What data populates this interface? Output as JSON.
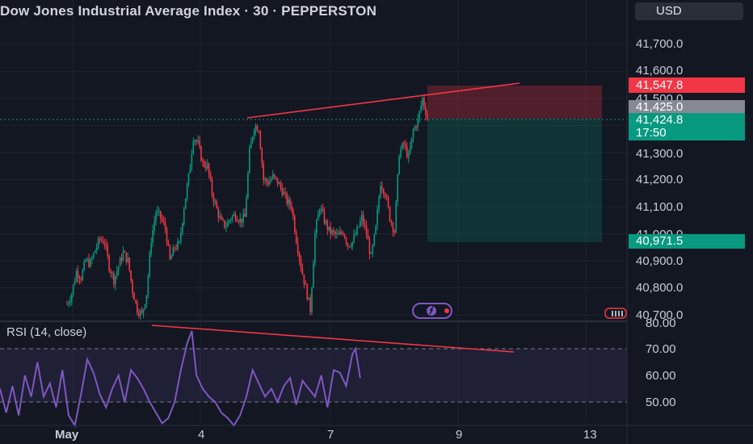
{
  "header": {
    "title": "Dow Jones Industrial Average Index · 30 · PEPPERSTON",
    "currency": "USD"
  },
  "price_axis": {
    "labels": [
      "41,700.0",
      "41,600.0",
      "41,500.0",
      "41,300.0",
      "41,200.0",
      "41,100.0",
      "41,000.0",
      "40,900.0",
      "40,800.0",
      "40,700.0"
    ]
  },
  "tags": {
    "stop": {
      "value": "41,547.8",
      "color": "#f23645"
    },
    "last_close": {
      "value": "41,425.0",
      "color": "#868993"
    },
    "current": {
      "value": "41,424.8",
      "countdown": "17:50",
      "color": "#089981"
    },
    "target": {
      "value": "40,971.5",
      "color": "#089981"
    }
  },
  "rsi": {
    "title": "RSI (14, close)",
    "labels": [
      "80.00",
      "70.00",
      "60.00",
      "50.00"
    ],
    "line_color": "#7e57c2"
  },
  "time_axis": {
    "labels": [
      "May",
      "4",
      "7",
      "9",
      "13"
    ]
  },
  "icons": {
    "logo": "tradingview-logo-icon",
    "calendar": "calendar-icon"
  },
  "chart_data": {
    "type": "candlestick",
    "symbol": "Dow Jones Industrial Average Index",
    "interval": "30",
    "ylim": [
      40700,
      41760
    ],
    "position": {
      "entry": 41425.0,
      "stop": 41547.8,
      "target": 40971.5
    },
    "rsi_levels": [
      70,
      50
    ],
    "close_path": [
      [
        0,
        40740
      ],
      [
        3,
        40780
      ],
      [
        6,
        40860
      ],
      [
        9,
        40840
      ],
      [
        12,
        40900
      ],
      [
        15,
        40890
      ],
      [
        18,
        40940
      ],
      [
        21,
        40980
      ],
      [
        24,
        40970
      ],
      [
        27,
        40880
      ],
      [
        30,
        40830
      ],
      [
        33,
        40880
      ],
      [
        36,
        40930
      ],
      [
        39,
        40900
      ],
      [
        42,
        40790
      ],
      [
        45,
        40720
      ],
      [
        48,
        40700
      ],
      [
        51,
        40780
      ],
      [
        54,
        40980
      ],
      [
        57,
        41080
      ],
      [
        60,
        41060
      ],
      [
        63,
        41020
      ],
      [
        66,
        40900
      ],
      [
        69,
        40950
      ],
      [
        72,
        40960
      ],
      [
        75,
        41100
      ],
      [
        78,
        41210
      ],
      [
        81,
        41360
      ],
      [
        84,
        41330
      ],
      [
        87,
        41260
      ],
      [
        90,
        41250
      ],
      [
        93,
        41150
      ],
      [
        96,
        41090
      ],
      [
        99,
        41040
      ],
      [
        102,
        41030
      ],
      [
        105,
        41060
      ],
      [
        108,
        41070
      ],
      [
        111,
        41050
      ],
      [
        114,
        41060
      ],
      [
        117,
        41300
      ],
      [
        120,
        41400
      ],
      [
        123,
        41390
      ],
      [
        126,
        41200
      ],
      [
        129,
        41190
      ],
      [
        132,
        41210
      ],
      [
        135,
        41190
      ],
      [
        138,
        41160
      ],
      [
        141,
        41120
      ],
      [
        144,
        41100
      ],
      [
        147,
        40980
      ],
      [
        150,
        40880
      ],
      [
        153,
        40800
      ],
      [
        156,
        40720
      ],
      [
        159,
        41000
      ],
      [
        162,
        41100
      ],
      [
        165,
        41050
      ],
      [
        168,
        41010
      ],
      [
        171,
        41000
      ],
      [
        174,
        40990
      ],
      [
        177,
        41010
      ],
      [
        180,
        40960
      ],
      [
        183,
        40970
      ],
      [
        186,
        41010
      ],
      [
        189,
        41060
      ],
      [
        192,
        41000
      ],
      [
        195,
        40910
      ],
      [
        198,
        41020
      ],
      [
        201,
        41190
      ],
      [
        204,
        41150
      ],
      [
        207,
        41060
      ],
      [
        210,
        41010
      ],
      [
        213,
        41300
      ],
      [
        216,
        41330
      ],
      [
        219,
        41280
      ],
      [
        222,
        41380
      ],
      [
        225,
        41420
      ],
      [
        228,
        41500
      ],
      [
        231,
        41430
      ]
    ],
    "rsi_path": [
      [
        0,
        55
      ],
      [
        4,
        46
      ],
      [
        8,
        56
      ],
      [
        12,
        45
      ],
      [
        16,
        60
      ],
      [
        20,
        52
      ],
      [
        24,
        65
      ],
      [
        28,
        52
      ],
      [
        32,
        57
      ],
      [
        36,
        48
      ],
      [
        40,
        62
      ],
      [
        44,
        45
      ],
      [
        48,
        40
      ],
      [
        52,
        53
      ],
      [
        56,
        66
      ],
      [
        60,
        61
      ],
      [
        64,
        53
      ],
      [
        68,
        48
      ],
      [
        72,
        55
      ],
      [
        76,
        60
      ],
      [
        80,
        50
      ],
      [
        84,
        62
      ],
      [
        88,
        59
      ],
      [
        92,
        55
      ],
      [
        96,
        50
      ],
      [
        100,
        46
      ],
      [
        104,
        42
      ],
      [
        108,
        44
      ],
      [
        112,
        50
      ],
      [
        116,
        62
      ],
      [
        120,
        72
      ],
      [
        123,
        77
      ],
      [
        126,
        60
      ],
      [
        130,
        55
      ],
      [
        134,
        52
      ],
      [
        138,
        50
      ],
      [
        142,
        46
      ],
      [
        146,
        44
      ],
      [
        150,
        40
      ],
      [
        154,
        45
      ],
      [
        158,
        52
      ],
      [
        162,
        62
      ],
      [
        166,
        57
      ],
      [
        170,
        52
      ],
      [
        174,
        55
      ],
      [
        178,
        50
      ],
      [
        182,
        56
      ],
      [
        186,
        59
      ],
      [
        190,
        49
      ],
      [
        194,
        58
      ],
      [
        198,
        55
      ],
      [
        202,
        52
      ],
      [
        206,
        60
      ],
      [
        210,
        48
      ],
      [
        214,
        62
      ],
      [
        218,
        61
      ],
      [
        222,
        56
      ],
      [
        226,
        68
      ],
      [
        228,
        70
      ],
      [
        231,
        59
      ]
    ]
  }
}
